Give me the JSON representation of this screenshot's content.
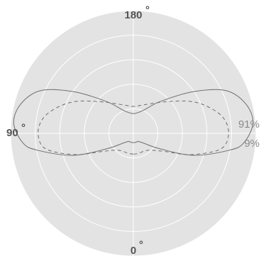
{
  "chart_data": {
    "type": "polar-line",
    "angle_labels": {
      "top": "180",
      "left": "90",
      "bottom": "0"
    },
    "percent_labels": {
      "upper": "91%",
      "lower": "9%"
    },
    "rings": 5,
    "series": [
      {
        "style": "solid",
        "color": "#6e6e6e",
        "points": [
          [
            0,
            0.09
          ],
          [
            10,
            0.09
          ],
          [
            20,
            0.09
          ],
          [
            30,
            0.09
          ],
          [
            45,
            0.13
          ],
          [
            60,
            0.3
          ],
          [
            70,
            0.62
          ],
          [
            80,
            0.94
          ],
          [
            85,
            1.07
          ],
          [
            95,
            1.16
          ],
          [
            105,
            1.12
          ],
          [
            115,
            0.98
          ],
          [
            125,
            0.7
          ],
          [
            140,
            0.4
          ],
          [
            155,
            0.25
          ],
          [
            170,
            0.2
          ],
          [
            180,
            0.19
          ]
        ]
      },
      {
        "style": "dashed",
        "color": "#6e6e6e",
        "points": [
          [
            0,
            0.2
          ],
          [
            15,
            0.2
          ],
          [
            30,
            0.2
          ],
          [
            45,
            0.23
          ],
          [
            60,
            0.35
          ],
          [
            70,
            0.6
          ],
          [
            80,
            0.86
          ],
          [
            90,
            0.92
          ],
          [
            100,
            0.88
          ],
          [
            110,
            0.76
          ],
          [
            120,
            0.62
          ],
          [
            135,
            0.43
          ],
          [
            150,
            0.33
          ],
          [
            165,
            0.28
          ],
          [
            180,
            0.26
          ]
        ]
      }
    ]
  }
}
